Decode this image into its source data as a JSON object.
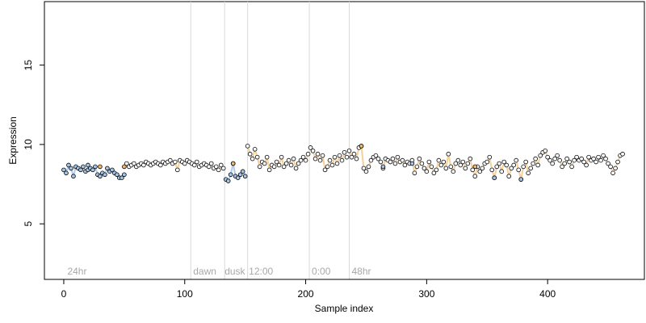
{
  "chart_data": {
    "type": "scatter",
    "title": "",
    "xlabel": "Sample index",
    "ylabel": "Expression",
    "xlim": [
      -16,
      480
    ],
    "ylim": [
      1.5,
      19
    ],
    "x_ticks": [
      0,
      100,
      200,
      300,
      400
    ],
    "y_ticks": [
      5,
      10,
      15
    ],
    "grid": false,
    "legend": "none",
    "vertical_lines": [
      105,
      133,
      152,
      203,
      236
    ],
    "annotations": [
      {
        "text": "24hr",
        "x": 3,
        "y": 2.0
      },
      {
        "text": "dawn",
        "x": 107,
        "y": 2.0
      },
      {
        "text": "dusk",
        "x": 133,
        "y": 2.0
      },
      {
        "text": "12:00",
        "x": 153,
        "y": 2.0
      },
      {
        "text": "0:00",
        "x": 205,
        "y": 2.0
      },
      {
        "text": "48hr",
        "x": 238,
        "y": 2.0
      }
    ],
    "colors": {
      "blue": "#a3c4e8",
      "orange": "#f2b66d",
      "white": "#ffffff",
      "line": "#f4c88a"
    },
    "series": [
      {
        "x": [
          0,
          2,
          4,
          6,
          8,
          10,
          12,
          14,
          16,
          18,
          20,
          22,
          24,
          26,
          28,
          30,
          32,
          34,
          36,
          38,
          40,
          42,
          44,
          46,
          48,
          50
        ],
        "y": [
          8.4,
          8.2,
          8.7,
          8.5,
          8.0,
          8.6,
          8.5,
          8.4,
          8.6,
          8.3,
          8.4,
          8.5,
          8.4,
          8.6,
          8.1,
          8.0,
          8.2,
          8.1,
          8.5,
          8.3,
          8.4,
          8.2,
          8.1,
          7.9,
          7.9,
          8.1
        ],
        "color": "blue"
      },
      {
        "x": [
          52,
          54,
          56,
          58,
          60,
          62,
          64,
          66,
          68,
          70,
          72,
          74,
          76,
          78,
          80,
          82,
          84,
          86,
          88,
          90,
          92,
          94,
          96,
          98,
          100,
          102,
          104
        ],
        "y": [
          8.8,
          8.6,
          8.7,
          8.8,
          8.6,
          8.7,
          8.8,
          8.7,
          8.9,
          8.8,
          8.7,
          8.8,
          8.9,
          8.8,
          8.7,
          8.9,
          8.8,
          8.9,
          9.0,
          8.8,
          8.9,
          8.4,
          9.0,
          8.9,
          8.8,
          9.0,
          8.9
        ],
        "color": "white"
      },
      {
        "x": [
          106,
          108,
          110,
          112,
          114,
          116,
          118,
          120,
          122,
          124,
          126,
          128,
          130,
          132
        ],
        "y": [
          8.8,
          8.7,
          8.9,
          8.6,
          8.7,
          8.8,
          8.7,
          8.6,
          8.8,
          8.5,
          8.6,
          8.4,
          8.7,
          8.5
        ],
        "color": "white"
      },
      {
        "x": [
          134,
          136,
          138,
          140,
          142,
          144,
          146,
          148,
          150
        ],
        "y": [
          7.8,
          7.7,
          8.1,
          8.8,
          8.0,
          7.9,
          8.1,
          8.3,
          8.0
        ],
        "color": "blue"
      },
      {
        "x": [
          152,
          154,
          156,
          158,
          160,
          162,
          164,
          166,
          168,
          170,
          172,
          174,
          176,
          178,
          180,
          182,
          184,
          186,
          188,
          190,
          192,
          194,
          196,
          198,
          200,
          202
        ],
        "y": [
          9.9,
          9.4,
          9.1,
          9.7,
          9.2,
          8.6,
          8.9,
          8.8,
          9.2,
          8.4,
          8.7,
          8.6,
          8.9,
          8.7,
          9.2,
          8.6,
          8.8,
          9.0,
          8.7,
          9.1,
          8.5,
          8.8,
          9.0,
          9.2,
          9.0,
          9.4
        ],
        "color": "white"
      },
      {
        "x": [
          204,
          206,
          208,
          210,
          212,
          214,
          216,
          218,
          220,
          222,
          224,
          226,
          228,
          230,
          232,
          234
        ],
        "y": [
          9.8,
          9.6,
          9.1,
          9.4,
          9.0,
          9.3,
          8.4,
          8.6,
          9.0,
          8.7,
          9.2,
          8.8,
          9.3,
          9.0,
          9.5,
          9.2
        ],
        "color": "white"
      },
      {
        "x": [
          236,
          238,
          240,
          242,
          244,
          246,
          248,
          250,
          252,
          254,
          256,
          258,
          260,
          262,
          264,
          266
        ],
        "y": [
          9.6,
          9.2,
          9.4,
          9.1,
          9.8,
          9.9,
          8.5,
          8.3,
          8.6,
          9.0,
          9.2,
          9.3,
          9.1,
          8.9,
          8.5,
          9.1
        ],
        "color": "white"
      },
      {
        "x": [
          268,
          270,
          272,
          274,
          276,
          278,
          280,
          282,
          284,
          286,
          288,
          290,
          292,
          294,
          296,
          298,
          300,
          302,
          304,
          306,
          308,
          310,
          312,
          314,
          316,
          318,
          320,
          322,
          324,
          326,
          328,
          330,
          332,
          334,
          336,
          338,
          340,
          342,
          344,
          346,
          348,
          350,
          352,
          354,
          356,
          358,
          360,
          362,
          364,
          366,
          368,
          370,
          372,
          374,
          376,
          378,
          380,
          382,
          384,
          386,
          388,
          390,
          392,
          394,
          396,
          398,
          400,
          402,
          404,
          406,
          408,
          410,
          412,
          414,
          416,
          418,
          420,
          422,
          424,
          426,
          428,
          430,
          432,
          434,
          436,
          438,
          440,
          442,
          444,
          446,
          448,
          450,
          452,
          454,
          456,
          458,
          460,
          462
        ],
        "y": [
          9.0,
          8.9,
          9.1,
          8.8,
          9.2,
          8.9,
          9.0,
          8.7,
          8.9,
          8.8,
          9.0,
          8.2,
          8.6,
          9.1,
          8.8,
          8.5,
          8.3,
          8.9,
          8.6,
          8.2,
          8.4,
          9.0,
          8.7,
          8.9,
          8.5,
          9.4,
          8.6,
          8.3,
          8.8,
          9.0,
          8.7,
          8.9,
          8.5,
          8.8,
          9.1,
          8.4,
          8.0,
          8.6,
          8.3,
          8.5,
          8.8,
          8.9,
          9.2,
          8.4,
          7.9,
          8.6,
          8.8,
          8.3,
          8.9,
          8.7,
          8.0,
          8.5,
          8.7,
          9.0,
          8.4,
          7.8,
          8.6,
          8.9,
          8.2,
          8.5,
          8.8,
          9.1,
          8.7,
          9.3,
          9.5,
          9.6,
          9.2,
          9.0,
          8.8,
          9.1,
          9.3,
          9.0,
          8.6,
          8.8,
          9.1,
          8.9,
          8.6,
          9.0,
          9.2,
          9.0,
          9.1,
          8.9,
          8.7,
          9.2,
          9.0,
          9.1,
          8.9,
          9.2,
          9.0,
          9.3,
          9.1,
          8.8,
          8.6,
          8.2,
          8.5,
          8.9,
          9.3,
          9.4
        ],
        "color": "white"
      }
    ],
    "highlights": [
      {
        "x": 30,
        "y": 8.6,
        "color": "orange"
      },
      {
        "x": 50,
        "y": 8.6,
        "color": "orange"
      },
      {
        "x": 140,
        "y": 8.8,
        "color": "orange"
      },
      {
        "x": 246,
        "y": 9.9,
        "color": "orange"
      },
      {
        "x": 340,
        "y": 8.6,
        "color": "orange"
      },
      {
        "x": 20,
        "y": 8.7,
        "color": "blue"
      },
      {
        "x": 264,
        "y": 8.6,
        "color": "blue"
      },
      {
        "x": 288,
        "y": 8.8,
        "color": "blue"
      },
      {
        "x": 356,
        "y": 7.9,
        "color": "blue"
      },
      {
        "x": 378,
        "y": 7.8,
        "color": "blue"
      }
    ]
  }
}
